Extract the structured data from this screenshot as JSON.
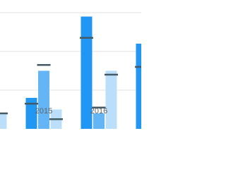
{
  "chart_data": {
    "type": "bar",
    "categories": [
      null,
      "2015",
      "2016",
      null
    ],
    "series": [
      {
        "color": "#2196f3",
        "values": [
          null,
          8,
          29,
          22
        ],
        "markers": [
          null,
          6.5,
          23.5,
          16
        ]
      },
      {
        "color": "#64b5f6",
        "values": [
          null,
          15,
          4,
          null
        ],
        "markers": [
          null,
          16.5,
          5.5,
          null
        ]
      },
      {
        "color": "#bbdefb",
        "values": [
          4,
          5,
          15,
          null
        ],
        "markers": [
          4,
          2.5,
          14,
          null
        ]
      }
    ],
    "marker_color": "#455a64",
    "ylim": [
      0,
      30
    ],
    "yticks": [
      10,
      20,
      30
    ],
    "grid": true
  }
}
